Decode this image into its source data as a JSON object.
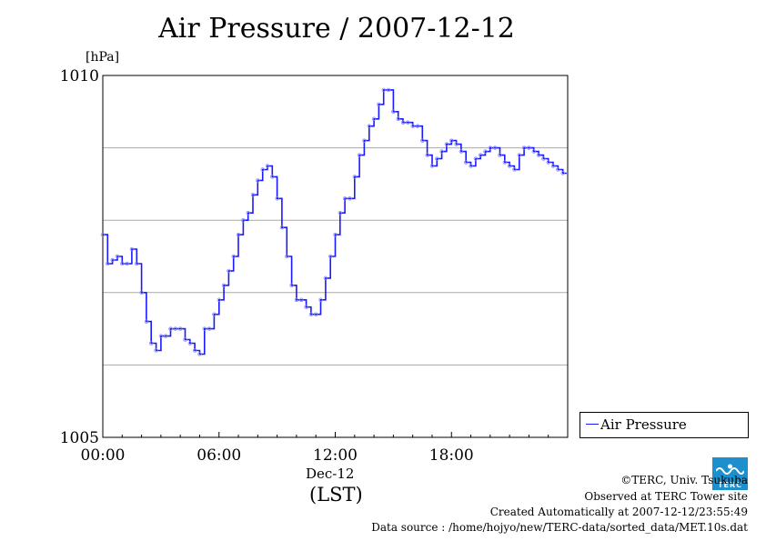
{
  "title": "Air Pressure / 2007-12-12",
  "unit": "[hPa]",
  "legend": {
    "label": "Air Pressure",
    "color": "#1a1aff"
  },
  "x_axis": {
    "date_label": "Dec-12",
    "tz_label": "(LST)"
  },
  "footer": {
    "copyright": "©TERC, Univ. Tsukuba",
    "observed": "Observed at TERC Tower site",
    "created": "Created Automatically at 2007-12-12/23:55:49",
    "source": "Data source : /home/hojyo/new/TERC-data/sorted_data/MET.10s.dat"
  },
  "logo": {
    "text": "TERC"
  },
  "chart_data": {
    "type": "line",
    "title": "Air Pressure / 2007-12-12",
    "ylabel": "[hPa]",
    "xlabel": "Dec-12 (LST)",
    "ylim": [
      1005,
      1010
    ],
    "xlim": [
      0,
      24
    ],
    "y_ticks": [
      {
        "value": 1005,
        "label": "1005"
      },
      {
        "value": 1010,
        "label": "1010"
      }
    ],
    "x_ticks": [
      {
        "value": 0,
        "label": "00:00"
      },
      {
        "value": 6,
        "label": "06:00"
      },
      {
        "value": 12,
        "label": "12:00"
      },
      {
        "value": 18,
        "label": "18:00"
      }
    ],
    "grid_y": [
      1006,
      1007,
      1008,
      1009
    ],
    "legend_position": "right",
    "series": [
      {
        "name": "Air Pressure",
        "color": "#1a1aff",
        "x": [
          0,
          0.25,
          0.5,
          0.75,
          1.0,
          1.25,
          1.5,
          1.75,
          2.0,
          2.25,
          2.5,
          2.75,
          3.0,
          3.25,
          3.5,
          3.75,
          4.0,
          4.25,
          4.5,
          4.75,
          5.0,
          5.25,
          5.5,
          5.75,
          6.0,
          6.25,
          6.5,
          6.75,
          7.0,
          7.25,
          7.5,
          7.75,
          8.0,
          8.25,
          8.5,
          8.75,
          9.0,
          9.25,
          9.5,
          9.75,
          10.0,
          10.25,
          10.5,
          10.75,
          11.0,
          11.25,
          11.5,
          11.75,
          12.0,
          12.25,
          12.5,
          12.75,
          13.0,
          13.25,
          13.5,
          13.75,
          14.0,
          14.25,
          14.5,
          14.75,
          15.0,
          15.25,
          15.5,
          15.75,
          16.0,
          16.25,
          16.5,
          16.75,
          17.0,
          17.25,
          17.5,
          17.75,
          18.0,
          18.25,
          18.5,
          18.75,
          19.0,
          19.25,
          19.5,
          19.75,
          20.0,
          20.25,
          20.5,
          20.75,
          21.0,
          21.25,
          21.5,
          21.75,
          22.0,
          22.25,
          22.5,
          22.75,
          23.0,
          23.25,
          23.5,
          23.75
        ],
        "values": [
          1007.8,
          1007.4,
          1007.45,
          1007.5,
          1007.4,
          1007.4,
          1007.6,
          1007.4,
          1007.0,
          1006.6,
          1006.3,
          1006.2,
          1006.4,
          1006.4,
          1006.5,
          1006.5,
          1006.5,
          1006.35,
          1006.3,
          1006.2,
          1006.15,
          1006.5,
          1006.5,
          1006.7,
          1006.9,
          1007.1,
          1007.3,
          1007.5,
          1007.8,
          1008.0,
          1008.1,
          1008.35,
          1008.55,
          1008.7,
          1008.75,
          1008.6,
          1008.3,
          1007.9,
          1007.5,
          1007.1,
          1006.9,
          1006.9,
          1006.8,
          1006.7,
          1006.7,
          1006.9,
          1007.2,
          1007.5,
          1007.8,
          1008.1,
          1008.3,
          1008.3,
          1008.6,
          1008.9,
          1009.1,
          1009.3,
          1009.4,
          1009.6,
          1009.8,
          1009.8,
          1009.5,
          1009.4,
          1009.35,
          1009.35,
          1009.3,
          1009.3,
          1009.1,
          1008.9,
          1008.75,
          1008.85,
          1008.95,
          1009.05,
          1009.1,
          1009.05,
          1008.95,
          1008.8,
          1008.75,
          1008.85,
          1008.9,
          1008.95,
          1009.0,
          1009.0,
          1008.9,
          1008.8,
          1008.75,
          1008.7,
          1008.9,
          1009.0,
          1009.0,
          1008.95,
          1008.9,
          1008.85,
          1008.8,
          1008.75,
          1008.7,
          1008.65
        ]
      }
    ]
  }
}
